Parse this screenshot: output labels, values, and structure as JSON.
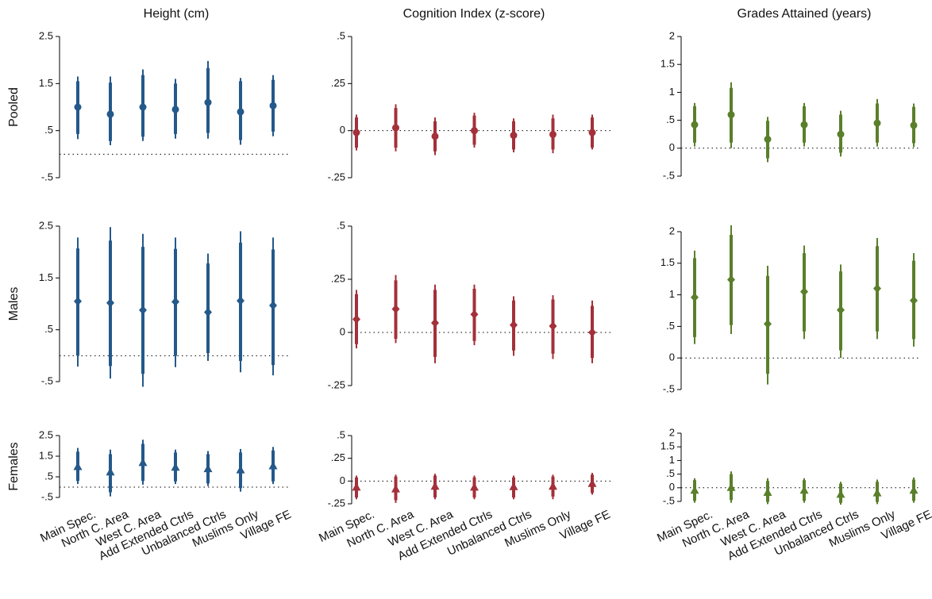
{
  "chart_data": [
    {
      "type": "errorbar",
      "title": "Height (cm)",
      "ylabel": "Pooled",
      "color": "#24598a",
      "marker": "circle",
      "ylim": [
        -0.5,
        2.5
      ],
      "yticks": [
        {
          "value": -0.5,
          "label": "-.5"
        },
        {
          "value": 0.5,
          "label": ".5"
        },
        1.5,
        2.5
      ],
      "values": [
        1.0,
        0.85,
        1.0,
        0.95,
        1.1,
        0.9,
        1.03
      ],
      "ci95": [
        [
          0.32,
          1.65
        ],
        [
          0.19,
          1.65
        ],
        [
          0.28,
          1.8
        ],
        [
          0.33,
          1.6
        ],
        [
          0.33,
          1.98
        ],
        [
          0.2,
          1.62
        ],
        [
          0.38,
          1.68
        ]
      ],
      "ci90": [
        [
          0.43,
          1.55
        ],
        [
          0.28,
          1.52
        ],
        [
          0.37,
          1.68
        ],
        [
          0.43,
          1.5
        ],
        [
          0.45,
          1.83
        ],
        [
          0.3,
          1.55
        ],
        [
          0.48,
          1.58
        ]
      ]
    },
    {
      "type": "errorbar",
      "title": "Cognition Index (z-score)",
      "color": "#a3303a",
      "marker": "circle",
      "ylim": [
        -0.25,
        0.5
      ],
      "yticks": [
        {
          "value": -0.25,
          "label": "-.25"
        },
        0,
        {
          "value": 0.25,
          "label": ".25"
        },
        {
          "value": 0.5,
          "label": ".5"
        }
      ],
      "values": [
        -0.01,
        0.015,
        -0.03,
        0.0,
        -0.025,
        -0.02,
        -0.01
      ],
      "ci95": [
        [
          -0.105,
          0.085
        ],
        [
          -0.11,
          0.14
        ],
        [
          -0.13,
          0.07
        ],
        [
          -0.09,
          0.095
        ],
        [
          -0.115,
          0.065
        ],
        [
          -0.12,
          0.085
        ],
        [
          -0.1,
          0.085
        ]
      ],
      "ci90": [
        [
          -0.09,
          0.07
        ],
        [
          -0.09,
          0.12
        ],
        [
          -0.11,
          0.05
        ],
        [
          -0.075,
          0.08
        ],
        [
          -0.1,
          0.05
        ],
        [
          -0.1,
          0.065
        ],
        [
          -0.09,
          0.07
        ]
      ]
    },
    {
      "type": "errorbar",
      "title": "Grades Attained (years)",
      "color": "#5a7f2b",
      "marker": "circle",
      "ylim": [
        -0.5,
        2
      ],
      "yticks": [
        {
          "value": -0.5,
          "label": "-.5"
        },
        0,
        {
          "value": 0.5,
          "label": ".5"
        },
        1,
        1.5,
        2
      ],
      "values": [
        0.42,
        0.6,
        0.16,
        0.42,
        0.25,
        0.45,
        0.41
      ],
      "ci95": [
        [
          0.03,
          0.81
        ],
        [
          0.0,
          1.18
        ],
        [
          -0.25,
          0.56
        ],
        [
          0.03,
          0.81
        ],
        [
          -0.15,
          0.67
        ],
        [
          0.03,
          0.88
        ],
        [
          0.02,
          0.8
        ]
      ],
      "ci90": [
        [
          0.1,
          0.75
        ],
        [
          0.1,
          1.08
        ],
        [
          -0.18,
          0.49
        ],
        [
          0.1,
          0.75
        ],
        [
          -0.08,
          0.6
        ],
        [
          0.1,
          0.8
        ],
        [
          0.09,
          0.74
        ]
      ]
    },
    {
      "type": "errorbar",
      "ylabel": "Males",
      "color": "#24598a",
      "marker": "diamond",
      "ylim": [
        -0.5,
        2.5
      ],
      "yticks": [
        {
          "value": -0.5,
          "label": "-.5"
        },
        {
          "value": 0.5,
          "label": ".5"
        },
        1.5,
        2.5
      ],
      "values": [
        1.05,
        1.02,
        0.88,
        1.04,
        0.84,
        1.06,
        0.97
      ],
      "ci95": [
        [
          -0.21,
          2.28
        ],
        [
          -0.44,
          2.48
        ],
        [
          -0.6,
          2.35
        ],
        [
          -0.22,
          2.28
        ],
        [
          -0.1,
          1.97
        ],
        [
          -0.32,
          2.4
        ],
        [
          -0.38,
          2.28
        ]
      ],
      "ci90": [
        [
          0.0,
          2.07
        ],
        [
          -0.2,
          2.22
        ],
        [
          -0.35,
          2.1
        ],
        [
          0.0,
          2.06
        ],
        [
          0.05,
          1.78
        ],
        [
          -0.1,
          2.18
        ],
        [
          -0.18,
          2.05
        ]
      ]
    },
    {
      "type": "errorbar",
      "color": "#a3303a",
      "marker": "diamond",
      "ylim": [
        -0.25,
        0.5
      ],
      "yticks": [
        {
          "value": -0.25,
          "label": "-.25"
        },
        0,
        {
          "value": 0.25,
          "label": ".25"
        },
        {
          "value": 0.5,
          "label": ".5"
        }
      ],
      "values": [
        0.062,
        0.11,
        0.045,
        0.085,
        0.035,
        0.03,
        0.0
      ],
      "ci95": [
        [
          -0.075,
          0.2
        ],
        [
          -0.05,
          0.27
        ],
        [
          -0.145,
          0.225
        ],
        [
          -0.06,
          0.225
        ],
        [
          -0.11,
          0.17
        ],
        [
          -0.125,
          0.175
        ],
        [
          -0.145,
          0.15
        ]
      ],
      "ci90": [
        [
          -0.055,
          0.18
        ],
        [
          -0.03,
          0.245
        ],
        [
          -0.115,
          0.2
        ],
        [
          -0.04,
          0.205
        ],
        [
          -0.085,
          0.15
        ],
        [
          -0.1,
          0.155
        ],
        [
          -0.12,
          0.125
        ]
      ]
    },
    {
      "type": "errorbar",
      "color": "#5a7f2b",
      "marker": "diamond",
      "ylim": [
        -0.5,
        2
      ],
      "yticks": [
        {
          "value": -0.5,
          "label": "-.5"
        },
        0,
        {
          "value": 0.5,
          "label": ".5"
        },
        1,
        1.5,
        2
      ],
      "values": [
        0.96,
        1.24,
        0.54,
        1.05,
        0.76,
        1.1,
        0.91
      ],
      "ci95": [
        [
          0.22,
          1.7
        ],
        [
          0.38,
          2.1
        ],
        [
          -0.42,
          1.46
        ],
        [
          0.3,
          1.78
        ],
        [
          0.0,
          1.48
        ],
        [
          0.3,
          1.9
        ],
        [
          0.18,
          1.66
        ]
      ],
      "ci90": [
        [
          0.33,
          1.58
        ],
        [
          0.52,
          1.95
        ],
        [
          -0.25,
          1.3
        ],
        [
          0.42,
          1.66
        ],
        [
          0.12,
          1.37
        ],
        [
          0.42,
          1.77
        ],
        [
          0.3,
          1.54
        ]
      ]
    },
    {
      "type": "errorbar",
      "ylabel": "Females",
      "color": "#24598a",
      "marker": "triangle",
      "categories": [
        "Main Spec.",
        "North C. Area",
        "West C. Area",
        "Add Extended Ctrls",
        "Unbalanced Ctrls",
        "Muslims Only",
        "Village FE"
      ],
      "ylim": [
        -0.5,
        2.5
      ],
      "yticks": [
        {
          "value": -0.5,
          "label": "-.5"
        },
        {
          "value": 0.5,
          "label": ".5"
        },
        1.5,
        2.5
      ],
      "values": [
        0.98,
        0.72,
        1.18,
        0.95,
        0.88,
        0.82,
        1.02
      ],
      "ci95": [
        [
          0.15,
          1.9
        ],
        [
          -0.45,
          1.82
        ],
        [
          0.12,
          2.3
        ],
        [
          0.15,
          1.82
        ],
        [
          0.05,
          1.75
        ],
        [
          -0.22,
          1.85
        ],
        [
          0.15,
          1.95
        ]
      ],
      "ci90": [
        [
          0.3,
          1.72
        ],
        [
          -0.25,
          1.6
        ],
        [
          0.3,
          2.1
        ],
        [
          0.28,
          1.68
        ],
        [
          0.18,
          1.6
        ],
        [
          -0.05,
          1.68
        ],
        [
          0.28,
          1.78
        ]
      ]
    },
    {
      "type": "errorbar",
      "color": "#a3303a",
      "marker": "triangle",
      "categories": [
        "Main Spec.",
        "North C. Area",
        "West C. Area",
        "Add Extended Ctrls",
        "Unbalanced Ctrls",
        "Muslims Only",
        "Village FE"
      ],
      "ylim": [
        -0.25,
        0.5
      ],
      "yticks": [
        {
          "value": -0.25,
          "label": "-.25"
        },
        0,
        {
          "value": 0.25,
          "label": ".25"
        },
        {
          "value": 0.5,
          "label": ".5"
        }
      ],
      "values": [
        -0.07,
        -0.09,
        -0.06,
        -0.07,
        -0.065,
        -0.06,
        -0.03
      ],
      "ci95": [
        [
          -0.2,
          0.06
        ],
        [
          -0.24,
          0.07
        ],
        [
          -0.2,
          0.08
        ],
        [
          -0.2,
          0.06
        ],
        [
          -0.2,
          0.06
        ],
        [
          -0.2,
          0.07
        ],
        [
          -0.15,
          0.09
        ]
      ],
      "ci90": [
        [
          -0.18,
          0.04
        ],
        [
          -0.21,
          0.05
        ],
        [
          -0.18,
          0.06
        ],
        [
          -0.18,
          0.04
        ],
        [
          -0.18,
          0.04
        ],
        [
          -0.17,
          0.05
        ],
        [
          -0.13,
          0.07
        ]
      ]
    },
    {
      "type": "errorbar",
      "color": "#5a7f2b",
      "marker": "triangle",
      "categories": [
        "Main Spec.",
        "North C. Area",
        "West C. Area",
        "Add Extended Ctrls",
        "Unbalanced Ctrls",
        "Muslims Only",
        "Village FE"
      ],
      "ylim": [
        -0.5,
        2
      ],
      "yticks": [
        {
          "value": -0.5,
          "label": "-.5"
        },
        0,
        {
          "value": 0.5,
          "label": ".5"
        },
        1,
        1.5,
        2
      ],
      "values": [
        -0.1,
        0.0,
        -0.18,
        -0.1,
        -0.25,
        -0.2,
        -0.1
      ],
      "ci95": [
        [
          -0.55,
          0.35
        ],
        [
          -0.55,
          0.6
        ],
        [
          -0.6,
          0.35
        ],
        [
          -0.55,
          0.35
        ],
        [
          -0.62,
          0.22
        ],
        [
          -0.6,
          0.3
        ],
        [
          -0.55,
          0.38
        ]
      ],
      "ci90": [
        [
          -0.48,
          0.28
        ],
        [
          -0.45,
          0.5
        ],
        [
          -0.52,
          0.25
        ],
        [
          -0.48,
          0.28
        ],
        [
          -0.55,
          0.15
        ],
        [
          -0.52,
          0.22
        ],
        [
          -0.48,
          0.3
        ]
      ]
    }
  ]
}
